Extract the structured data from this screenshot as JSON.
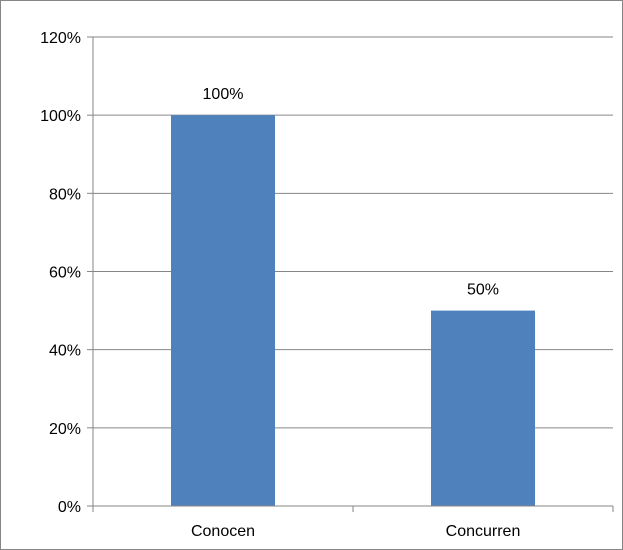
{
  "chart_data": {
    "type": "bar",
    "categories": [
      "Conocen",
      "Concurren"
    ],
    "values": [
      100,
      50
    ],
    "data_labels": [
      "100%",
      "50%"
    ],
    "title": "",
    "xlabel": "",
    "ylabel": "",
    "ylim": [
      0,
      120
    ],
    "yticks": [
      0,
      20,
      40,
      60,
      80,
      100,
      120
    ],
    "ytick_labels": [
      "0%",
      "20%",
      "40%",
      "60%",
      "80%",
      "100%",
      "120%"
    ],
    "grid": true,
    "legend": "none",
    "colors": {
      "bar": "#4F81BD",
      "grid": "#868686",
      "axis": "#868686",
      "border": "#868686"
    }
  }
}
